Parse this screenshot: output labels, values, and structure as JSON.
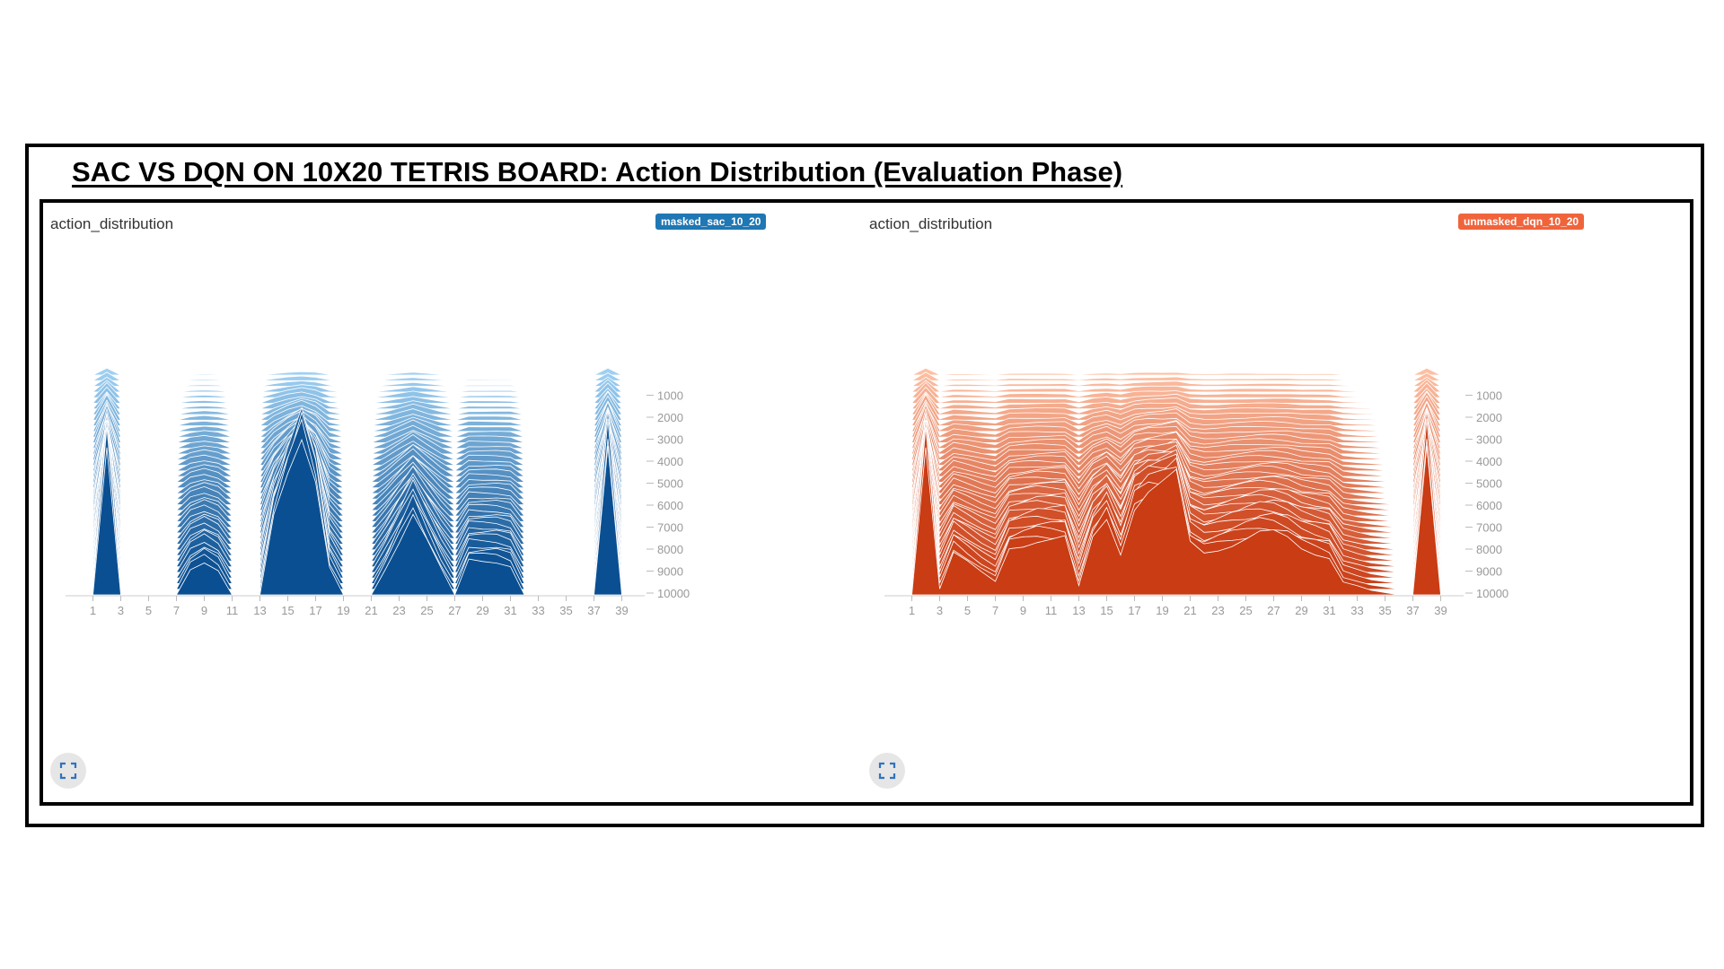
{
  "page_title": "SAC VS DQN ON 10X20 TETRIS BOARD: Action Distribution (Evaluation Phase)",
  "panels": [
    {
      "tag": "action_distribution",
      "run_label": "masked_sac_10_20",
      "color": "#1f77b4"
    },
    {
      "tag": "action_distribution",
      "run_label": "unmasked_dqn_10_20",
      "color": "#f0643c"
    }
  ],
  "chart_data": [
    {
      "type": "area",
      "title": "",
      "series_name": "masked_sac_10_20",
      "x_ticks": [
        1,
        3,
        5,
        7,
        9,
        11,
        13,
        15,
        17,
        19,
        21,
        23,
        25,
        27,
        29,
        31,
        33,
        35,
        37,
        39
      ],
      "xlim": [
        0,
        40
      ],
      "step_ticks": [
        1000,
        2000,
        3000,
        4000,
        5000,
        6000,
        7000,
        8000,
        9000,
        10000
      ],
      "step_range": [
        0,
        10000
      ],
      "x": [
        1,
        2,
        3,
        4,
        5,
        6,
        7,
        8,
        9,
        10,
        11,
        12,
        13,
        14,
        15,
        16,
        17,
        18,
        19,
        20,
        21,
        22,
        23,
        24,
        25,
        26,
        27,
        28,
        29,
        30,
        31,
        32,
        33,
        34,
        35,
        36,
        37,
        38,
        39
      ],
      "action_profile_final": [
        0,
        0.74,
        0,
        0,
        0,
        0,
        0,
        0.12,
        0.16,
        0.12,
        0,
        0,
        0,
        0.36,
        0.58,
        0.78,
        0.56,
        0.13,
        0,
        0,
        0,
        0.12,
        0.26,
        0.4,
        0.26,
        0.12,
        0,
        0.16,
        0.16,
        0.16,
        0.14,
        0,
        0,
        0,
        0,
        0,
        0,
        0.74,
        0
      ],
      "action_profile_early": [
        0,
        0.2,
        0,
        0,
        0,
        0,
        0,
        0.02,
        0.03,
        0.02,
        0,
        0,
        0,
        0.04,
        0.08,
        0.1,
        0.08,
        0.02,
        0,
        0,
        0,
        0.02,
        0.05,
        0.08,
        0.05,
        0.02,
        0,
        0.02,
        0.02,
        0.02,
        0.02,
        0,
        0,
        0,
        0,
        0,
        0,
        0.2,
        0
      ]
    },
    {
      "type": "area",
      "title": "",
      "series_name": "unmasked_dqn_10_20",
      "x_ticks": [
        1,
        3,
        5,
        7,
        9,
        11,
        13,
        15,
        17,
        19,
        21,
        23,
        25,
        27,
        29,
        31,
        33,
        35,
        37,
        39
      ],
      "xlim": [
        0,
        40
      ],
      "step_ticks": [
        1000,
        2000,
        3000,
        4000,
        5000,
        6000,
        7000,
        8000,
        9000,
        10000
      ],
      "step_range": [
        0,
        10000
      ],
      "x": [
        1,
        2,
        3,
        4,
        5,
        6,
        7,
        8,
        9,
        10,
        11,
        12,
        13,
        14,
        15,
        16,
        17,
        18,
        19,
        20,
        21,
        22,
        23,
        24,
        25,
        26,
        27,
        28,
        29,
        30,
        31,
        32,
        33,
        34,
        35,
        36,
        37,
        38,
        39
      ],
      "action_profile_final": [
        0,
        0.74,
        0.03,
        0.2,
        0.15,
        0.1,
        0.06,
        0.22,
        0.24,
        0.26,
        0.26,
        0.26,
        0.04,
        0.26,
        0.36,
        0.2,
        0.42,
        0.48,
        0.5,
        0.54,
        0.24,
        0.2,
        0.22,
        0.24,
        0.26,
        0.28,
        0.28,
        0.26,
        0.22,
        0.2,
        0.18,
        0.06,
        0.04,
        0.02,
        0.01,
        0,
        0,
        0.74,
        0
      ],
      "action_profile_early": [
        0,
        0.2,
        0.01,
        0.04,
        0.04,
        0.03,
        0.02,
        0.05,
        0.05,
        0.05,
        0.05,
        0.05,
        0.02,
        0.05,
        0.06,
        0.04,
        0.07,
        0.08,
        0.08,
        0.09,
        0.05,
        0.04,
        0.04,
        0.05,
        0.05,
        0.05,
        0.05,
        0.05,
        0.04,
        0.04,
        0.04,
        0.02,
        0.01,
        0.01,
        0,
        0,
        0,
        0.2,
        0
      ]
    }
  ]
}
